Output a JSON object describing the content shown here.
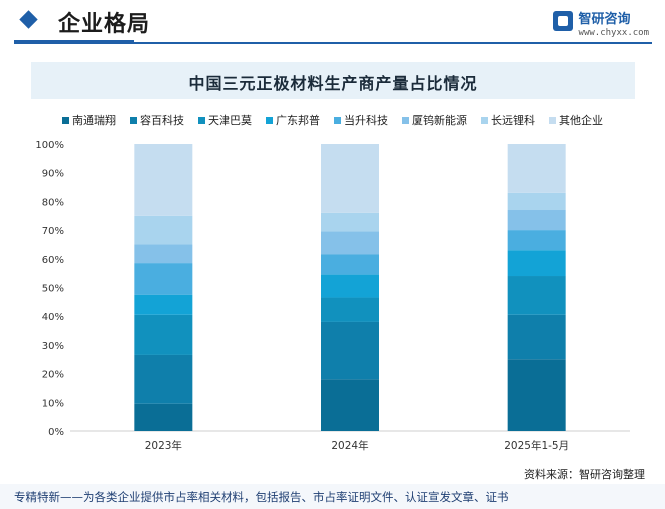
{
  "header": {
    "section_title": "企业格局",
    "brand_name": "智研咨询",
    "brand_url": "www.chyxx.com"
  },
  "chart_data": {
    "type": "bar",
    "stacked": true,
    "title": "中国三元正极材料生产商产量占比情况",
    "categories": [
      "2023年",
      "2024年",
      "2025年1-5月"
    ],
    "ylim": [
      0,
      100
    ],
    "yticks": [
      "0%",
      "10%",
      "20%",
      "30%",
      "40%",
      "50%",
      "60%",
      "70%",
      "80%",
      "90%",
      "100%"
    ],
    "legend_position": "top",
    "series": [
      {
        "name": "南通瑞翔",
        "color": "#0a6e96",
        "values": [
          9.5,
          18,
          25
        ]
      },
      {
        "name": "容百科技",
        "color": "#0f7fab",
        "values": [
          17,
          20,
          15.5
        ]
      },
      {
        "name": "天津巴莫",
        "color": "#1191be",
        "values": [
          14,
          8.5,
          13.5
        ]
      },
      {
        "name": "广东邦普",
        "color": "#13a3d6",
        "values": [
          7,
          8,
          9
        ]
      },
      {
        "name": "当升科技",
        "color": "#4aaee0",
        "values": [
          11,
          7,
          7
        ]
      },
      {
        "name": "厦钨新能源",
        "color": "#85c1e9",
        "values": [
          6.5,
          8,
          7
        ]
      },
      {
        "name": "长远锂科",
        "color": "#a9d4ee",
        "values": [
          10,
          6.5,
          6
        ]
      },
      {
        "name": "其他企业",
        "color": "#c5ddf0",
        "values": [
          25,
          24,
          17
        ]
      }
    ]
  },
  "source": "资料来源：智研咨询整理",
  "footer": {
    "text": "专精特新——为各类企业提供市占率相关材料，包括报告、市占率证明文件、认证宣发文章、证书"
  }
}
